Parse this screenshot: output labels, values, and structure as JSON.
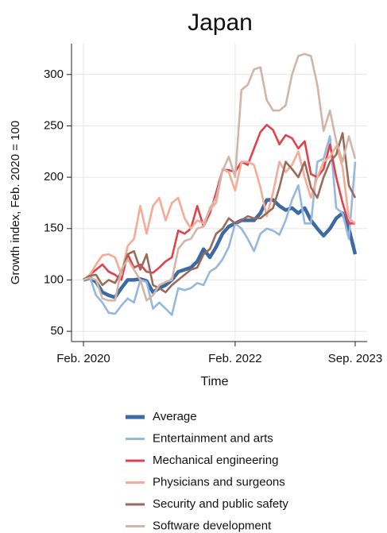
{
  "chart_data": {
    "type": "line",
    "title": "Japan",
    "xlabel": "Time",
    "ylabel": "Growth index, Feb. 2020 = 100",
    "x": [
      "2020-02",
      "2020-03",
      "2020-04",
      "2020-05",
      "2020-06",
      "2020-07",
      "2020-08",
      "2020-09",
      "2020-10",
      "2020-11",
      "2020-12",
      "2021-01",
      "2021-02",
      "2021-03",
      "2021-04",
      "2021-05",
      "2021-06",
      "2021-07",
      "2021-08",
      "2021-09",
      "2021-10",
      "2021-11",
      "2021-12",
      "2022-01",
      "2022-02",
      "2022-03",
      "2022-04",
      "2022-05",
      "2022-06",
      "2022-07",
      "2022-08",
      "2022-09",
      "2022-10",
      "2022-11",
      "2022-12",
      "2023-01",
      "2023-02",
      "2023-03",
      "2023-04",
      "2023-05",
      "2023-06",
      "2023-07",
      "2023-08",
      "2023-09"
    ],
    "xlim": [
      "2020-02",
      "2023-09"
    ],
    "xticks": [
      {
        "value": "2020-02",
        "label": "Feb. 2020"
      },
      {
        "value": "2022-02",
        "label": "Feb. 2022"
      },
      {
        "value": "2023-09",
        "label": "Sep. 2023"
      }
    ],
    "ylim": [
      40,
      330
    ],
    "yticks": [
      50,
      100,
      150,
      200,
      250,
      300
    ],
    "grid": true,
    "series": [
      {
        "name": "Average",
        "color": "#3d6aa3",
        "values": [
          100,
          102,
          98,
          88,
          85,
          83,
          92,
          100,
          100,
          101,
          99,
          88,
          92,
          95,
          100,
          108,
          110,
          112,
          118,
          130,
          122,
          132,
          145,
          152,
          155,
          158,
          158,
          158,
          165,
          178,
          178,
          172,
          168,
          170,
          165,
          170,
          158,
          150,
          143,
          150,
          160,
          165,
          150,
          125
        ]
      },
      {
        "name": "Entertainment and arts",
        "color": "#94b8de",
        "values": [
          100,
          103,
          85,
          78,
          68,
          67,
          75,
          82,
          78,
          100,
          98,
          72,
          78,
          72,
          66,
          92,
          90,
          92,
          97,
          95,
          108,
          112,
          120,
          132,
          155,
          150,
          140,
          128,
          145,
          150,
          148,
          144,
          158,
          178,
          192,
          155,
          155,
          215,
          218,
          240,
          170,
          165,
          140,
          215
        ]
      },
      {
        "name": "Mechanical engineering",
        "color": "#e0424c",
        "values": [
          100,
          105,
          110,
          115,
          108,
          105,
          100,
          125,
          112,
          115,
          108,
          107,
          112,
          118,
          122,
          148,
          145,
          150,
          172,
          152,
          165,
          185,
          207,
          207,
          205,
          215,
          212,
          228,
          244,
          251,
          246,
          232,
          241,
          238,
          228,
          235,
          203,
          200,
          208,
          232,
          200,
          175,
          155,
          155
        ]
      },
      {
        "name": "Physicians and surgeons",
        "color": "#f5ab96",
        "values": [
          100,
          105,
          115,
          124,
          125,
          122,
          105,
          133,
          140,
          172,
          145,
          172,
          180,
          158,
          175,
          180,
          160,
          150,
          158,
          155,
          168,
          175,
          208,
          205,
          187,
          215,
          215,
          212,
          190,
          162,
          185,
          215,
          205,
          212,
          225,
          200,
          180,
          200,
          215,
          220,
          230,
          210,
          160,
          155
        ]
      },
      {
        "name": "Security and public safety",
        "color": "#9a6b5a",
        "values": [
          100,
          104,
          105,
          95,
          100,
          97,
          108,
          125,
          128,
          110,
          125,
          95,
          92,
          88,
          95,
          100,
          105,
          110,
          112,
          125,
          130,
          145,
          150,
          160,
          155,
          158,
          162,
          160,
          160,
          165,
          170,
          190,
          215,
          208,
          200,
          215,
          190,
          180,
          200,
          215,
          222,
          243,
          192,
          180
        ]
      },
      {
        "name": "Software development",
        "color": "#d4b4a7",
        "values": [
          100,
          102,
          100,
          82,
          80,
          80,
          110,
          120,
          110,
          100,
          80,
          85,
          95,
          98,
          100,
          130,
          138,
          140,
          150,
          152,
          170,
          180,
          206,
          220,
          200,
          285,
          290,
          305,
          307,
          275,
          265,
          265,
          270,
          300,
          318,
          320,
          318,
          290,
          245,
          265,
          235,
          215,
          240,
          218
        ]
      }
    ]
  }
}
